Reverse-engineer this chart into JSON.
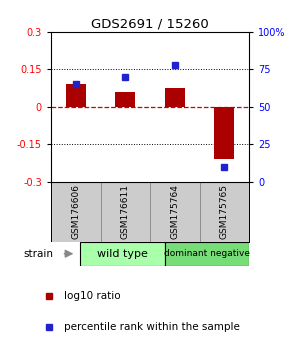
{
  "title": "GDS2691 / 15260",
  "samples": [
    "GSM176606",
    "GSM176611",
    "GSM175764",
    "GSM175765"
  ],
  "log10_ratio": [
    0.09,
    0.06,
    0.075,
    -0.21
  ],
  "percentile_rank": [
    65,
    70,
    78,
    10
  ],
  "ylim_left": [
    -0.3,
    0.3
  ],
  "ylim_right": [
    0,
    100
  ],
  "yticks_left": [
    -0.3,
    -0.15,
    0,
    0.15,
    0.3
  ],
  "yticks_right": [
    0,
    25,
    50,
    75,
    100
  ],
  "bar_color": "#aa0000",
  "dot_color": "#2222cc",
  "zero_line_color": "#cc0000",
  "gridline_color": "#000000",
  "groups": [
    {
      "label": "wild type",
      "color": "#aaeea a"
    },
    {
      "label": "dominant negative",
      "color": "#77cc77"
    }
  ],
  "group_colors": [
    "#aaffaa",
    "#77dd77"
  ],
  "sample_box_color": "#cccccc",
  "strain_label": "strain",
  "legend_bar": "log10 ratio",
  "legend_dot": "percentile rank within the sample",
  "bar_width": 0.4
}
